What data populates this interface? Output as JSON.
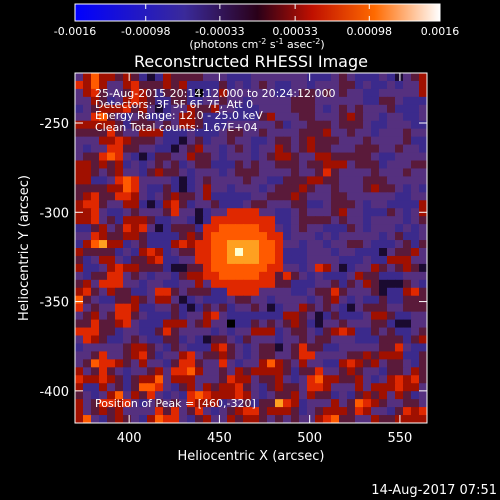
{
  "chart_data": {
    "type": "heatmap",
    "title": "Reconstructed RHESSI Image",
    "xlabel": "Heliocentric X (arcsec)",
    "ylabel": "Heliocentric Y (arcsec)",
    "xlim": [
      370,
      565
    ],
    "ylim": [
      -418,
      -222
    ],
    "x_ticks": [
      "400",
      "450",
      "500",
      "550"
    ],
    "x_tick_values": [
      400,
      450,
      500,
      550
    ],
    "y_ticks": [
      "-250",
      "-300",
      "-350",
      "-400"
    ],
    "y_tick_values": [
      -250,
      -300,
      -350,
      -400
    ],
    "colorbar": {
      "ticks": [
        "-0.0016",
        "-0.00098",
        "-0.00033",
        "0.00033",
        "0.00098",
        "0.0016"
      ],
      "tick_values": [
        -0.0016,
        -0.00098,
        -0.00033,
        0.00033,
        0.00098,
        0.0016
      ],
      "range": [
        -0.0016,
        0.0016
      ],
      "unit_label": "(photons cm",
      "unit_exp1": "-2",
      "unit_mid": " s",
      "unit_exp2": "-1",
      "unit_mid2": " asec",
      "unit_exp3": "-2",
      "unit_end": ")"
    },
    "annotations": [
      "25-Aug-2015 20:14:12.000 to 20:24:12.000",
      "Detectors: 3F 5F 6F 7F, Att 0",
      "Energy Range: 12.0 - 25.0 keV",
      "Clean      Total counts: 1.67E+04"
    ],
    "peak_label": "Position of Peak = [460,-320]",
    "peak": [
      460,
      -320
    ],
    "colors": {
      "low": "#0000ff",
      "mid": "#5a2a8a",
      "high": "#ff2000",
      "peak": "#ffffff"
    }
  },
  "footer": {
    "timestamp": "14-Aug-2017 07:51"
  }
}
